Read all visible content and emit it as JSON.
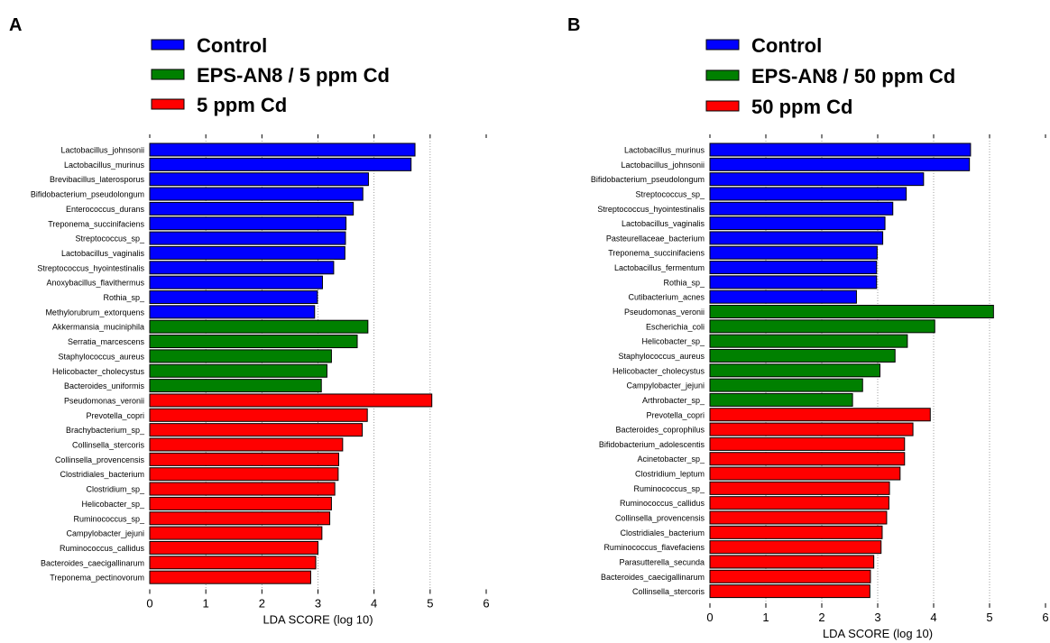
{
  "chart_data": [
    {
      "type": "bar",
      "panel_label": "A",
      "orientation": "horizontal",
      "xlabel": "LDA SCORE (log 10)",
      "ylabel": "",
      "xlim": [
        0,
        6
      ],
      "xticks": [
        "0",
        "1",
        "2",
        "3",
        "4",
        "5",
        "6"
      ],
      "grid": "vertical dotted",
      "legend_position": "top",
      "series": [
        {
          "name": "Control",
          "color": "#0000ff",
          "categories": [
            "Lactobacillus_johnsonii",
            "Lactobacillus_murinus",
            "Brevibacillus_laterosporus",
            "Bifidobacterium_pseudolongum",
            "Enterococcus_durans",
            "Treponema_succinifaciens",
            "Streptococcus_sp_",
            "Lactobacillus_vaginalis",
            "Streptococcus_hyointestinalis",
            "Anoxybacillus_flavithermus",
            "Rothia_sp_",
            "Methylorubrum_extorquens"
          ],
          "values": [
            4.73,
            4.66,
            3.9,
            3.8,
            3.63,
            3.5,
            3.49,
            3.48,
            3.28,
            3.08,
            2.99,
            2.94
          ]
        },
        {
          "name": "EPS-AN8 / 5 ppm Cd",
          "color": "#008000",
          "categories": [
            "Akkermansia_muciniphila",
            "Serratia_marcescens",
            "Staphylococcus_aureus",
            "Helicobacter_cholecystus",
            "Bacteroides_uniformis"
          ],
          "values": [
            3.89,
            3.7,
            3.24,
            3.16,
            3.06
          ]
        },
        {
          "name": "5 ppm Cd",
          "color": "#ff0000",
          "categories": [
            "Pseudomonas_veronii",
            "Prevotella_copri",
            "Brachybacterium_sp_",
            "Collinsella_stercoris",
            "Collinsella_provencensis",
            "Clostridiales_bacterium",
            "Clostridium_sp_",
            "Helicobacter_sp_",
            "Ruminococcus_sp_",
            "Campylobacter_jejuni",
            "Ruminococcus_callidus",
            "Bacteroides_caecigallinarum",
            "Treponema_pectinovorum"
          ],
          "values": [
            5.03,
            3.88,
            3.79,
            3.44,
            3.37,
            3.36,
            3.3,
            3.24,
            3.21,
            3.07,
            3.0,
            2.96,
            2.87
          ]
        }
      ]
    },
    {
      "type": "bar",
      "panel_label": "B",
      "orientation": "horizontal",
      "xlabel": "LDA SCORE (log 10)",
      "ylabel": "",
      "xlim": [
        0,
        6
      ],
      "xticks": [
        "0",
        "1",
        "2",
        "3",
        "4",
        "5",
        "6"
      ],
      "grid": "vertical dotted",
      "legend_position": "top",
      "series": [
        {
          "name": "Control",
          "color": "#0000ff",
          "categories": [
            "Lactobacillus_murinus",
            "Lactobacillus_johnsonii",
            "Bifidobacterium_pseudolongum",
            "Streptococcus_sp_",
            "Streptococcus_hyointestinalis",
            "Lactobacillus_vaginalis",
            "Pasteurellaceae_bacterium",
            "Treponema_succinifaciens",
            "Lactobacillus_fermentum",
            "Rothia_sp_",
            "Cutibacterium_acnes"
          ],
          "values": [
            4.66,
            4.64,
            3.82,
            3.51,
            3.27,
            3.13,
            3.09,
            2.99,
            2.98,
            2.98,
            2.62
          ]
        },
        {
          "name": "EPS-AN8 / 50 ppm Cd",
          "color": "#008000",
          "categories": [
            "Pseudomonas_veronii",
            "Escherichia_coli",
            "Helicobacter_sp_",
            "Staphylococcus_aureus",
            "Helicobacter_cholecystus",
            "Campylobacter_jejuni",
            "Arthrobacter_sp_"
          ],
          "values": [
            5.07,
            4.02,
            3.53,
            3.31,
            3.04,
            2.73,
            2.55
          ]
        },
        {
          "name": "50 ppm Cd",
          "color": "#ff0000",
          "categories": [
            "Prevotella_copri",
            "Bacteroides_coprophilus",
            "Bifidobacterium_adolescentis",
            "Acinetobacter_sp_",
            "Clostridium_leptum",
            "Ruminococcus_sp_",
            "Ruminococcus_callidus",
            "Collinsella_provencensis",
            "Clostridiales_bacterium",
            "Ruminococcus_flavefaciens",
            "Parasutterella_secunda",
            "Bacteroides_caecigallinarum",
            "Collinsella_stercoris"
          ],
          "values": [
            3.94,
            3.63,
            3.48,
            3.48,
            3.4,
            3.21,
            3.2,
            3.16,
            3.08,
            3.06,
            2.93,
            2.87,
            2.86
          ]
        }
      ]
    }
  ]
}
